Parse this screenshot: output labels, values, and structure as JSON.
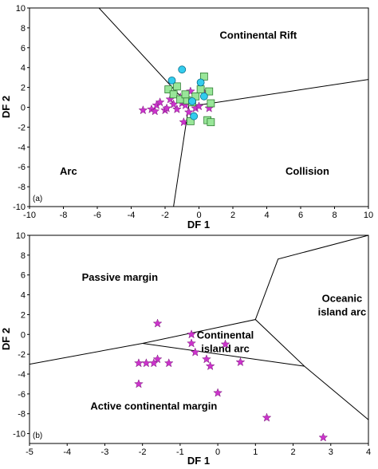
{
  "chart_data": [
    {
      "type": "scatter",
      "panel_label": "(a)",
      "xlabel": "DF 1",
      "ylabel": "DF 2",
      "xlim": [
        -10,
        10
      ],
      "ylim": [
        -10,
        10
      ],
      "x_ticks": [
        -10,
        -8,
        -6,
        -4,
        -2,
        0,
        2,
        4,
        6,
        8,
        10
      ],
      "y_ticks": [
        -10,
        -8,
        -6,
        -4,
        -2,
        0,
        2,
        4,
        6,
        8,
        10
      ],
      "regions": [
        {
          "label": "Continental Rift",
          "x": 3.5,
          "y": 6.9
        },
        {
          "label": "Arc",
          "x": -7.7,
          "y": -6.8
        },
        {
          "label": "Collision",
          "x": 6.4,
          "y": -6.8
        }
      ],
      "boundaries": [
        [
          [
            -5.9,
            10
          ],
          [
            -0.6,
            0.2
          ],
          [
            -1.5,
            -10
          ]
        ],
        [
          [
            -0.6,
            0.2
          ],
          [
            0.3,
            0.3
          ],
          [
            10,
            2.8
          ]
        ]
      ],
      "colors": {
        "star": "#cc33cc",
        "square": "#99e699",
        "circle": "#33ccee"
      },
      "series": [
        {
          "marker": "star",
          "points": [
            [
              -3.3,
              -0.3
            ],
            [
              -2.8,
              -0.2
            ],
            [
              -2.6,
              -0.4
            ],
            [
              -2.5,
              0.2
            ],
            [
              -2.3,
              0.5
            ],
            [
              -2.0,
              -0.3
            ],
            [
              -1.9,
              -0.1
            ],
            [
              -1.7,
              0.8
            ],
            [
              -1.5,
              0.3
            ],
            [
              -1.3,
              -0.2
            ],
            [
              -1.1,
              1.0
            ],
            [
              -1.0,
              0.4
            ],
            [
              -0.8,
              0.2
            ],
            [
              -0.6,
              -0.5
            ],
            [
              -0.5,
              1.6
            ],
            [
              -0.2,
              -0.1
            ],
            [
              0.0,
              0.1
            ],
            [
              0.3,
              1.5
            ],
            [
              0.6,
              -0.1
            ],
            [
              -0.9,
              -1.5
            ]
          ]
        },
        {
          "marker": "square",
          "points": [
            [
              -1.8,
              1.8
            ],
            [
              -1.5,
              1.3
            ],
            [
              -1.3,
              2.1
            ],
            [
              -1.1,
              0.8
            ],
            [
              -0.7,
              0.7
            ],
            [
              -0.4,
              0.5
            ],
            [
              -0.2,
              1.1
            ],
            [
              0.1,
              1.8
            ],
            [
              0.3,
              3.1
            ],
            [
              0.6,
              1.6
            ],
            [
              0.7,
              0.4
            ],
            [
              -0.5,
              -1.4
            ],
            [
              0.5,
              -1.3
            ],
            [
              0.7,
              -1.5
            ],
            [
              -0.8,
              1.3
            ]
          ]
        },
        {
          "marker": "circle",
          "points": [
            [
              -1.0,
              3.8
            ],
            [
              -1.6,
              2.7
            ],
            [
              0.1,
              2.5
            ],
            [
              0.3,
              1.1
            ],
            [
              -0.4,
              0.6
            ],
            [
              -0.3,
              -0.9
            ]
          ]
        }
      ]
    },
    {
      "type": "scatter",
      "panel_label": "(b)",
      "xlabel": "DF 1",
      "ylabel": "DF 2",
      "xlim": [
        -5,
        4
      ],
      "ylim": [
        -11,
        10
      ],
      "x_ticks": [
        -5,
        -4,
        -3,
        -2,
        -1,
        0,
        1,
        2,
        3,
        4
      ],
      "y_ticks": [
        -10,
        -8,
        -6,
        -4,
        -2,
        0,
        2,
        4,
        6,
        8,
        10
      ],
      "regions": [
        {
          "label": "Passive margin",
          "x": -2.6,
          "y": 5.4
        },
        {
          "label": "Oceanic",
          "x": 3.3,
          "y": 3.3
        },
        {
          "label": "island arc",
          "x": 3.3,
          "y": 1.9
        },
        {
          "label": "Continental",
          "x": 0.2,
          "y": -0.4
        },
        {
          "label": "island arc",
          "x": 0.2,
          "y": -1.8
        },
        {
          "label": "Active continental margin",
          "x": -1.7,
          "y": -7.6
        }
      ],
      "boundaries": [
        [
          [
            -5,
            -3.0
          ],
          [
            -2.0,
            -0.9
          ],
          [
            1.0,
            1.5
          ],
          [
            2.3,
            -3.2
          ],
          [
            4,
            -8.6
          ]
        ],
        [
          [
            1.0,
            1.5
          ],
          [
            1.6,
            7.6
          ],
          [
            4,
            10
          ]
        ],
        [
          [
            -2.0,
            -0.9
          ],
          [
            2.3,
            -3.2
          ]
        ]
      ],
      "colors": {
        "star": "#cc33cc"
      },
      "series": [
        {
          "marker": "star",
          "points": [
            [
              -1.6,
              1.1
            ],
            [
              -0.7,
              0.0
            ],
            [
              -0.7,
              -0.9
            ],
            [
              -0.6,
              -1.8
            ],
            [
              -0.3,
              -2.5
            ],
            [
              -0.2,
              -3.2
            ],
            [
              0.2,
              -1.0
            ],
            [
              0.6,
              -2.8
            ],
            [
              -1.3,
              -2.9
            ],
            [
              -1.6,
              -2.5
            ],
            [
              -1.7,
              -2.9
            ],
            [
              -1.9,
              -2.9
            ],
            [
              -2.1,
              -2.9
            ],
            [
              -2.1,
              -5.0
            ],
            [
              0.0,
              -5.9
            ],
            [
              1.3,
              -8.4
            ],
            [
              2.8,
              -10.4
            ]
          ]
        }
      ]
    }
  ]
}
